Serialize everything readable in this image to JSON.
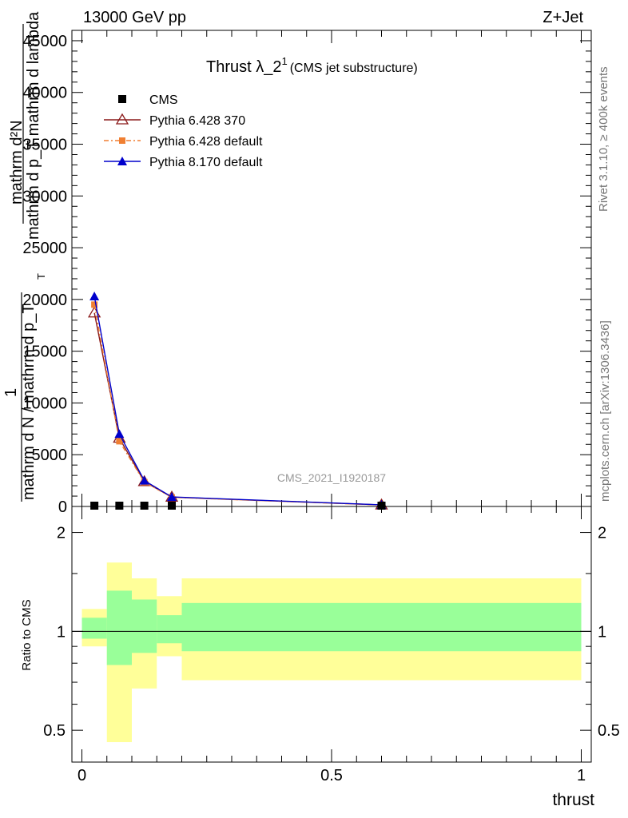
{
  "header": {
    "left": "13000 GeV pp",
    "right": "Z+Jet"
  },
  "side_labels": {
    "rivet": "Rivet 3.1.10, ≥ 400k events",
    "mcplots": "mcplots.cern.ch [arXiv:1306.3436]"
  },
  "main_plot": {
    "title": "Thrust λ_2",
    "title_sup": "1",
    "title_suffix": "(CMS jet substructure)",
    "watermark": "CMS_2021_I1920187",
    "ylabel_numerator": "1",
    "ylabel_line1": "mathrm d²N",
    "ylabel_line2": "mathrm d p_T mathrm d lambda",
    "ylabel_line3": "mathrm d N / mathrm d p_T",
    "ylabel_sub": "T",
    "y_ticks": [
      "0",
      "5000",
      "10000",
      "15000",
      "20000",
      "25000",
      "30000",
      "35000",
      "40000",
      "45000"
    ],
    "ylim": [
      0,
      46000
    ]
  },
  "legend": {
    "entries": [
      {
        "name": "CMS",
        "color": "#000000",
        "marker": "square"
      },
      {
        "name": "Pythia 6.428 370",
        "color": "#8b1a1a",
        "marker": "open-triangle"
      },
      {
        "name": "Pythia 6.428 default",
        "color": "#f07f32",
        "marker": "square-dashed"
      },
      {
        "name": "Pythia 8.170 default",
        "color": "#0000cc",
        "marker": "triangle"
      }
    ]
  },
  "ratio_plot": {
    "ylabel": "Ratio to CMS",
    "y_ticks": [
      "0.5",
      "1",
      "2"
    ],
    "ylim": [
      0.4,
      2.4
    ]
  },
  "x_axis": {
    "label": "thrust",
    "ticks": [
      "0",
      "0.5",
      "1"
    ],
    "xlim": [
      -0.02,
      1.02
    ]
  },
  "chart_data": {
    "type": "line",
    "x": [
      0.025,
      0.075,
      0.125,
      0.18,
      0.6
    ],
    "bin_edges": [
      0,
      0.05,
      0.1,
      0.15,
      0.2,
      1.0
    ],
    "series": [
      {
        "name": "CMS",
        "values": [
          0,
          0,
          0,
          0,
          0
        ]
      },
      {
        "name": "Pythia 6.428 370",
        "values": [
          18700,
          6600,
          2400,
          900,
          150
        ]
      },
      {
        "name": "Pythia 6.428 default",
        "values": [
          19500,
          6300,
          2350,
          880,
          140
        ]
      },
      {
        "name": "Pythia 8.170 default",
        "values": [
          20300,
          7000,
          2500,
          920,
          160
        ]
      }
    ],
    "ratio_bands": {
      "yellow": [
        [
          0.9,
          1.17
        ],
        [
          0.46,
          1.62
        ],
        [
          0.67,
          1.45
        ],
        [
          0.84,
          1.28
        ],
        [
          0.71,
          1.45
        ]
      ],
      "green": [
        [
          0.95,
          1.1
        ],
        [
          0.79,
          1.33
        ],
        [
          0.86,
          1.25
        ],
        [
          0.92,
          1.12
        ],
        [
          0.87,
          1.22
        ]
      ]
    },
    "band_colors": {
      "yellow": "#ffff99",
      "green": "#99ff99"
    },
    "grid": false,
    "legend_position": "top-left"
  }
}
